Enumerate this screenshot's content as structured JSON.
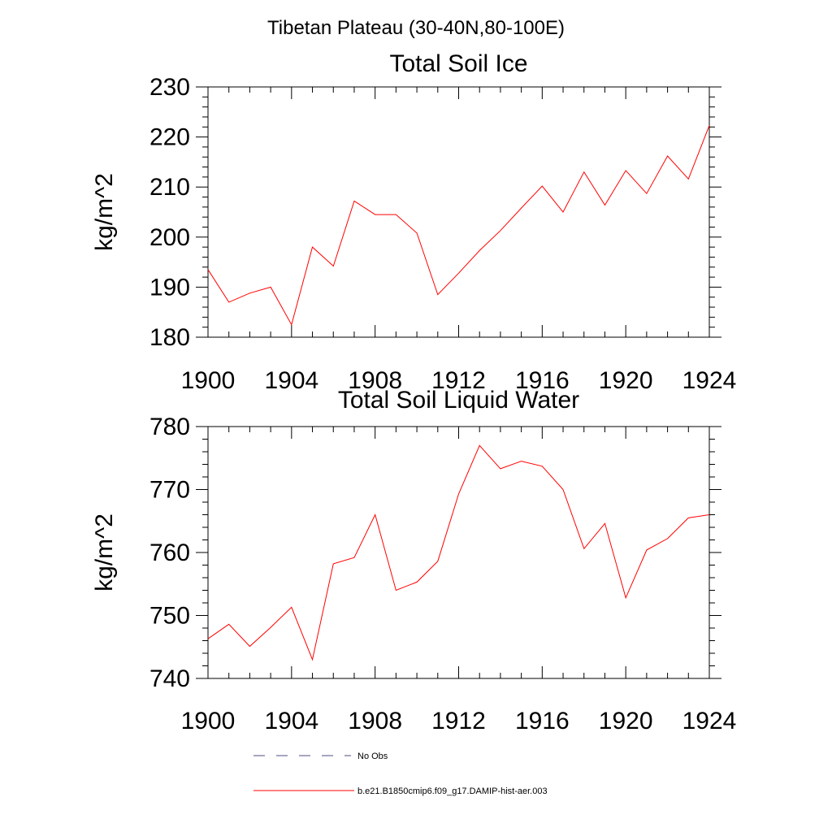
{
  "figure": {
    "suptitle": "Tibetan Plateau (30-40N,80-100E)"
  },
  "chart_data": [
    {
      "type": "line",
      "title": "Total Soil Ice",
      "xlabel": "",
      "ylabel": "kg/m^2",
      "xlim": [
        1900,
        1924
      ],
      "ylim": [
        180,
        230
      ],
      "xticks": [
        1900,
        1904,
        1908,
        1912,
        1916,
        1920,
        1924
      ],
      "yticks": [
        180,
        190,
        200,
        210,
        220,
        230
      ],
      "series": [
        {
          "name": "b.e21.B1850cmip6.f09_g17.DAMIP-hist-aer.003",
          "color": "#ff0000",
          "x": [
            1900,
            1901,
            1902,
            1903,
            1904,
            1905,
            1906,
            1907,
            1908,
            1909,
            1910,
            1911,
            1912,
            1913,
            1914,
            1915,
            1916,
            1917,
            1918,
            1919,
            1920,
            1921,
            1922,
            1923,
            1924
          ],
          "y": [
            193.5,
            187.0,
            188.8,
            190.0,
            182.5,
            198.0,
            194.2,
            207.2,
            204.5,
            204.5,
            200.8,
            188.5,
            192.8,
            197.3,
            201.3,
            205.8,
            210.2,
            205.0,
            213.0,
            206.4,
            213.3,
            208.7,
            216.2,
            211.6,
            222.3
          ]
        }
      ]
    },
    {
      "type": "line",
      "title": "Total Soil Liquid Water",
      "xlabel": "",
      "ylabel": "kg/m^2",
      "xlim": [
        1900,
        1924
      ],
      "ylim": [
        740,
        780
      ],
      "xticks": [
        1900,
        1904,
        1908,
        1912,
        1916,
        1920,
        1924
      ],
      "yticks": [
        740,
        750,
        760,
        770,
        780
      ],
      "series": [
        {
          "name": "b.e21.B1850cmip6.f09_g17.DAMIP-hist-aer.003",
          "color": "#ff0000",
          "x": [
            1900,
            1901,
            1902,
            1903,
            1904,
            1905,
            1906,
            1907,
            1908,
            1909,
            1910,
            1911,
            1912,
            1913,
            1914,
            1915,
            1916,
            1917,
            1918,
            1919,
            1920,
            1921,
            1922,
            1923,
            1924
          ],
          "y": [
            746.3,
            748.6,
            745.1,
            748.1,
            751.3,
            743.0,
            758.2,
            759.2,
            766.0,
            754.0,
            755.3,
            758.6,
            769.3,
            777.0,
            773.3,
            774.5,
            773.7,
            770.0,
            760.6,
            764.6,
            752.8,
            760.4,
            762.2,
            765.5,
            766.0
          ]
        }
      ]
    }
  ],
  "legend": {
    "entries": [
      {
        "label": "No Obs",
        "color": "#4d4d80",
        "dash": "dashed"
      },
      {
        "label": "b.e21.B1850cmip6.f09_g17.DAMIP-hist-aer.003",
        "color": "#ff0000",
        "dash": "solid"
      }
    ]
  }
}
